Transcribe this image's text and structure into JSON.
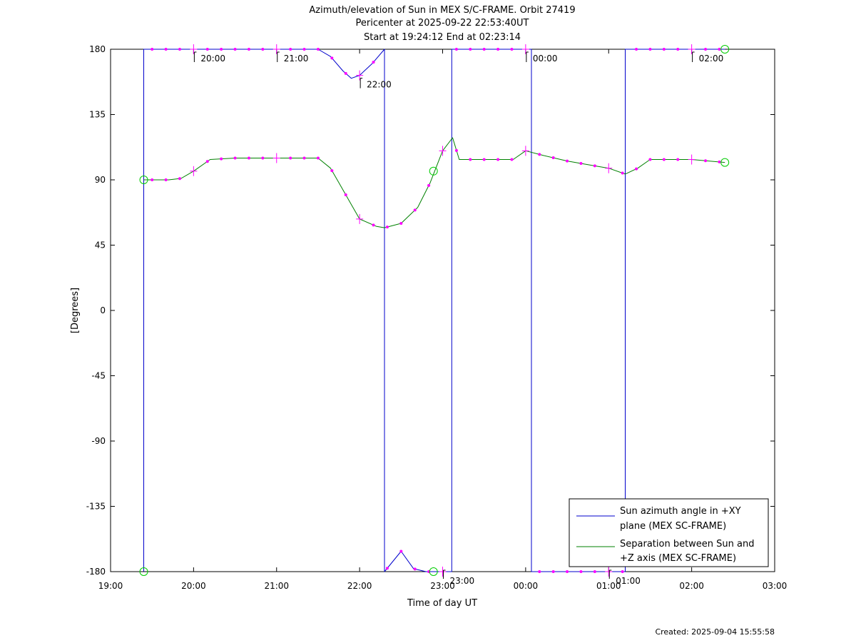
{
  "chart_data": {
    "type": "line",
    "title_lines": [
      "Azimuth/elevation of Sun in MEX S/C-FRAME.  Orbit 27419",
      "Pericenter at 2025-09-22 22:53:40UT",
      "Start at 19:24:12 End at 02:23:14"
    ],
    "xlabel": "Time of day UT",
    "ylabel": "[Degrees]",
    "xlim_hours": [
      19,
      27
    ],
    "ylim": [
      -180,
      180
    ],
    "x_tick_labels": [
      "19:00",
      "20:00",
      "21:00",
      "22:00",
      "23:00",
      "00:00",
      "01:00",
      "02:00",
      "03:00"
    ],
    "y_tick_labels": [
      "180",
      "135",
      "90",
      "45",
      "0",
      "-45",
      "-90",
      "-135",
      "-180"
    ],
    "y_tick_values": [
      180,
      135,
      90,
      45,
      0,
      -45,
      -90,
      -135,
      -180
    ],
    "legend_position": "bottom-right",
    "series": [
      {
        "name": "Sun azimuth angle in +XY plane (MEX SC-FRAME)",
        "legend_lines": [
          "Sun azimuth angle in +XY",
          "plane (MEX SC-FRAME)"
        ],
        "color": "#0000cc",
        "x": [
          19.4,
          19.4,
          19.7,
          20.0,
          20.5,
          21.0,
          21.5,
          21.65,
          21.8,
          21.9,
          22.0,
          22.15,
          22.3,
          22.3,
          22.5,
          22.65,
          22.8,
          23.11,
          23.11,
          23.5,
          23.95,
          24.07,
          24.07,
          24.5,
          25.0,
          25.2,
          25.2,
          25.5,
          26.0,
          26.4
        ],
        "y": [
          -180,
          180,
          180,
          180,
          180,
          180,
          180,
          175,
          165,
          160,
          162,
          170,
          180,
          -180,
          -166,
          -178,
          -180,
          -180,
          180,
          180,
          180,
          180,
          -180,
          -180,
          -180,
          -180,
          180,
          180,
          180,
          180
        ]
      },
      {
        "name": "Separation between Sun and +Z axis (MEX SC-FRAME)",
        "legend_lines": [
          "Separation between Sun and",
          "+Z axis (MEX SC-FRAME)"
        ],
        "color": "#008000",
        "x": [
          19.4,
          19.7,
          19.85,
          20.0,
          20.2,
          20.5,
          21.0,
          21.5,
          21.65,
          21.8,
          21.9,
          22.0,
          22.2,
          22.3,
          22.5,
          22.7,
          22.85,
          23.0,
          23.12,
          23.2,
          23.5,
          23.85,
          24.0,
          24.2,
          24.5,
          24.8,
          25.0,
          25.2,
          25.35,
          25.5,
          26.0,
          26.4
        ],
        "y": [
          90,
          90,
          91,
          96,
          104,
          105,
          105,
          105,
          98,
          83,
          73,
          63,
          58,
          57,
          60,
          71,
          88,
          110,
          119,
          104,
          104,
          104,
          110,
          107,
          103,
          100,
          98,
          94,
          98,
          104,
          104,
          102
        ]
      }
    ],
    "time_annotations": [
      "20:00",
      "21:00",
      "22:00",
      "23:00",
      "00:00",
      "01:00",
      "02:00"
    ],
    "footer": "Created: 2025-09-04 15:55:58"
  },
  "colors": {
    "azimuth_line": "#0000cc",
    "separation_line": "#008000",
    "marker": "#ff00ff",
    "start_end_circle": "#00cc00"
  }
}
